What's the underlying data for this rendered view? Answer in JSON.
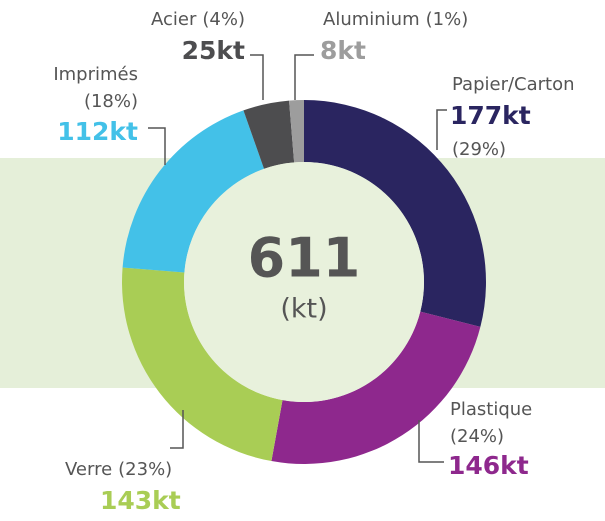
{
  "chart_data": {
    "type": "donut",
    "categories": [
      "Papier/Carton",
      "Plastique",
      "Verre",
      "Imprimés",
      "Acier",
      "Aluminium"
    ],
    "values": [
      177,
      146,
      143,
      112,
      25,
      8
    ],
    "value_labels": [
      "177kt",
      "146kt",
      "143kt",
      "112kt",
      "25kt",
      "8kt"
    ],
    "percents": [
      29,
      24,
      23,
      18,
      4,
      1
    ],
    "percent_labels": [
      "(29%)",
      "(24%)",
      "(23%)",
      "(18%)",
      "(4%)",
      "(1%)"
    ],
    "colors": [
      "#2a2560",
      "#8e288d",
      "#a9cd55",
      "#43c1e8",
      "#4d4d4f",
      "#9d9d9d"
    ],
    "center_value": 611,
    "center_unit": "(kt)"
  }
}
